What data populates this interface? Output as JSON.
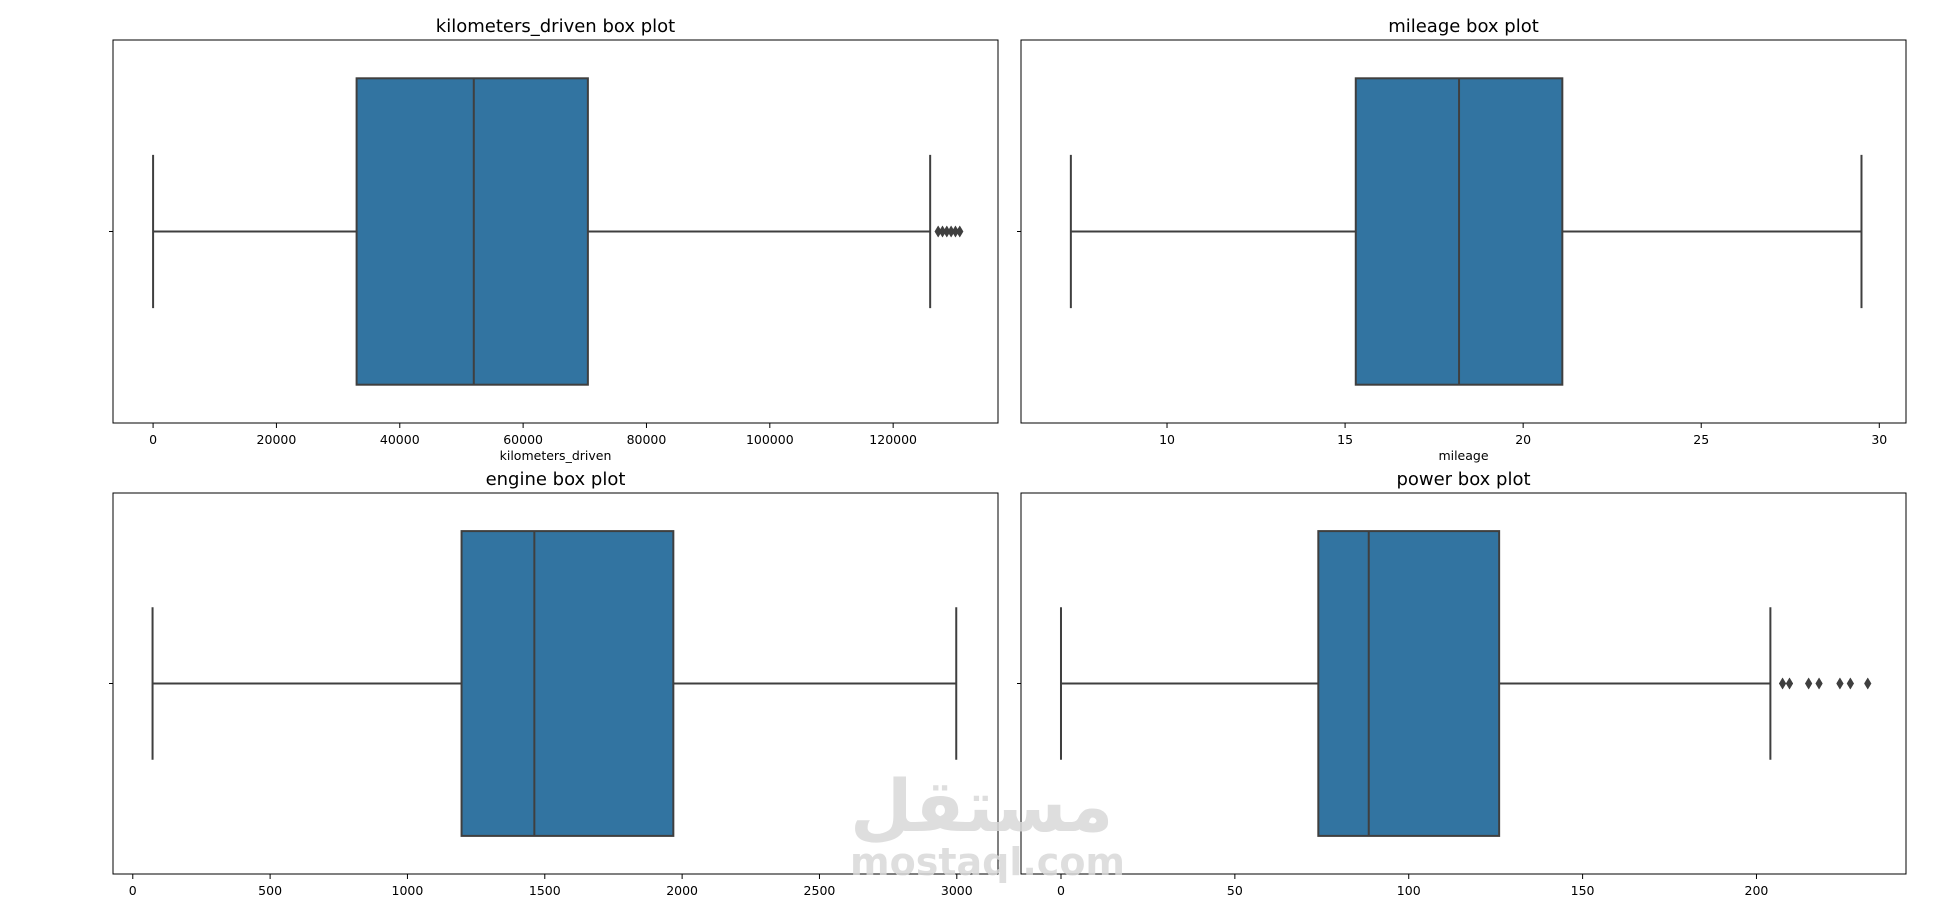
{
  "chart_data": [
    {
      "type": "box",
      "title": "kilometers_driven box plot",
      "xlabel": "kilometers_driven",
      "xlim": [
        -6500,
        137000
      ],
      "xticks": [
        0,
        20000,
        40000,
        60000,
        80000,
        100000,
        120000
      ],
      "whisker_low": 0,
      "q1": 33000,
      "median": 52000,
      "q3": 70500,
      "whisker_high": 126000,
      "outliers": [
        127300,
        128000,
        128700,
        129400,
        130100,
        130800
      ],
      "box_color": "#3274a1"
    },
    {
      "type": "box",
      "title": "mileage box plot",
      "xlabel": "mileage",
      "xlim": [
        5.9,
        30.75
      ],
      "xticks": [
        10,
        15,
        20,
        25,
        30
      ],
      "whisker_low": 7.3,
      "q1": 15.3,
      "median": 18.2,
      "q3": 21.1,
      "whisker_high": 29.5,
      "outliers": [],
      "box_color": "#3274a1"
    },
    {
      "type": "box",
      "title": "engine box plot",
      "xlabel": "",
      "xlim": [
        -72,
        3150
      ],
      "xticks": [
        0,
        500,
        1000,
        1500,
        2000,
        2500,
        3000
      ],
      "whisker_low": 72,
      "q1": 1197,
      "median": 1462,
      "q3": 1968,
      "whisker_high": 2998,
      "outliers": [],
      "box_color": "#3274a1"
    },
    {
      "type": "box",
      "title": "power box plot",
      "xlabel": "",
      "xlim": [
        -11.5,
        243
      ],
      "xticks": [
        0,
        50,
        100,
        150,
        200
      ],
      "whisker_low": 0,
      "q1": 74,
      "median": 88.5,
      "q3": 126,
      "whisker_high": 204,
      "outliers": [
        207.5,
        209.5,
        215,
        218,
        224,
        227,
        232
      ],
      "box_color": "#3274a1"
    }
  ],
  "watermark": {
    "arabic": "مستقل",
    "latin": "mostaql.com"
  }
}
